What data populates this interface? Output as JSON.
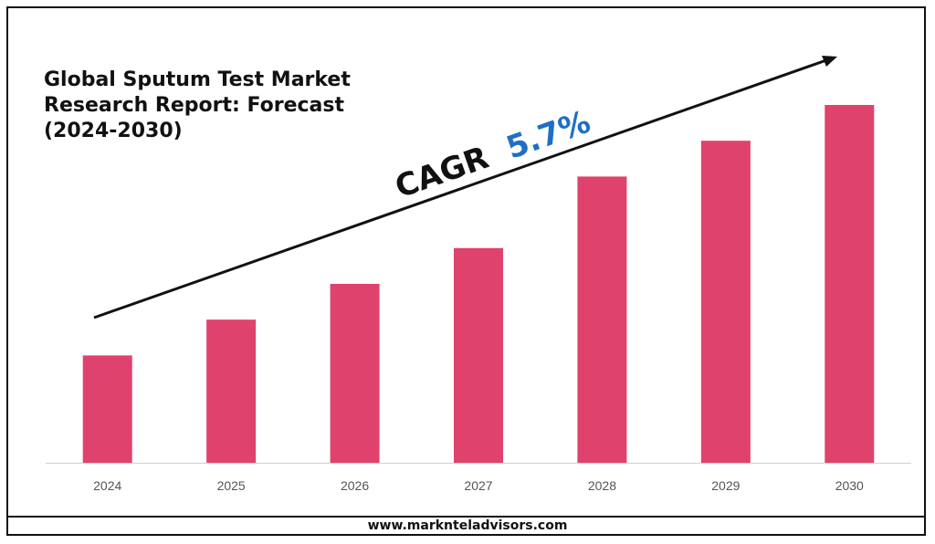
{
  "title_lines": [
    "Global Sputum Test Market",
    "Research Report: Forecast",
    "(2024-2030)"
  ],
  "cagr": {
    "label": "CAGR",
    "value": "5.7%",
    "value_color": "#1f6fc4"
  },
  "footer": {
    "url": "www.marknteladvisors.com"
  },
  "chart_data": {
    "type": "bar",
    "categories": [
      "2024",
      "2025",
      "2026",
      "2027",
      "2028",
      "2029",
      "2030"
    ],
    "values": [
      30,
      40,
      50,
      60,
      80,
      90,
      100
    ],
    "ylim": [
      0,
      100
    ],
    "bar_color": "#e0426e",
    "xlabel": "",
    "ylabel": "",
    "grid": false,
    "legend": "none",
    "annotation": "CAGR 5.7% (upward trend arrow)"
  }
}
